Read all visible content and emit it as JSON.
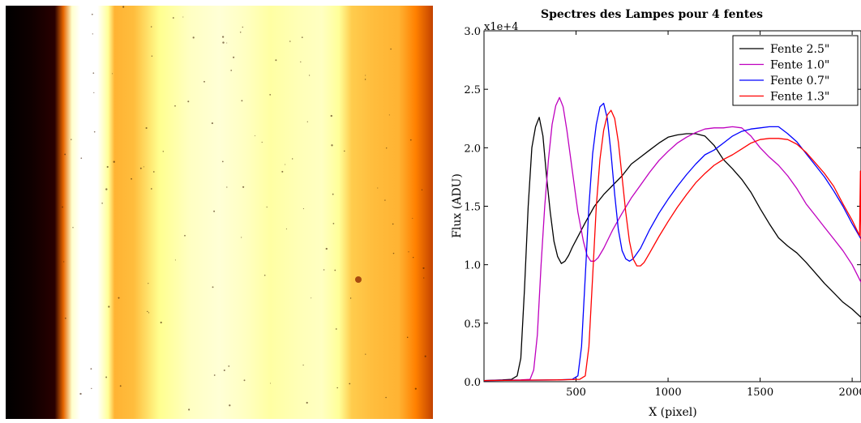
{
  "image": {
    "colormap": "afmhot",
    "bands": [
      {
        "pos": 0.0,
        "level": 0.0
      },
      {
        "pos": 0.06,
        "level": 0.03
      },
      {
        "pos": 0.115,
        "level": 0.08
      },
      {
        "pos": 0.135,
        "level": 0.45
      },
      {
        "pos": 0.155,
        "level": 0.9
      },
      {
        "pos": 0.175,
        "level": 1.0
      },
      {
        "pos": 0.215,
        "level": 1.0
      },
      {
        "pos": 0.24,
        "level": 0.8
      },
      {
        "pos": 0.255,
        "level": 0.6
      },
      {
        "pos": 0.3,
        "level": 0.62
      },
      {
        "pos": 0.36,
        "level": 0.78
      },
      {
        "pos": 0.43,
        "level": 0.88
      },
      {
        "pos": 0.5,
        "level": 0.92
      },
      {
        "pos": 0.56,
        "level": 0.88
      },
      {
        "pos": 0.62,
        "level": 0.82
      },
      {
        "pos": 0.69,
        "level": 0.86
      },
      {
        "pos": 0.74,
        "level": 0.88
      },
      {
        "pos": 0.78,
        "level": 0.8
      },
      {
        "pos": 0.81,
        "level": 0.65
      },
      {
        "pos": 0.86,
        "level": 0.62
      },
      {
        "pos": 0.92,
        "level": 0.6
      },
      {
        "pos": 0.96,
        "level": 0.5
      },
      {
        "pos": 1.0,
        "level": 0.38
      }
    ]
  },
  "chart_data": {
    "type": "line",
    "title": "Spectres des Lampes pour 4 fentes",
    "xlabel": "X (pixel)",
    "ylabel": "Flux (ADU)",
    "y_multiplier": "x1e+4",
    "xlim": [
      0,
      2048
    ],
    "ylim": [
      0.0,
      3.0
    ],
    "xticks": [
      500,
      1000,
      1500,
      2000
    ],
    "yticks": [
      0.0,
      0.5,
      1.0,
      1.5,
      2.0,
      2.5,
      3.0
    ],
    "legend_position": "top-right",
    "series": [
      {
        "name": "Fente 2.5\"",
        "color": "#000000",
        "points": [
          [
            0,
            0.01
          ],
          [
            100,
            0.015
          ],
          [
            150,
            0.02
          ],
          [
            180,
            0.05
          ],
          [
            200,
            0.2
          ],
          [
            220,
            0.8
          ],
          [
            240,
            1.5
          ],
          [
            260,
            2.0
          ],
          [
            280,
            2.18
          ],
          [
            300,
            2.26
          ],
          [
            320,
            2.1
          ],
          [
            340,
            1.75
          ],
          [
            360,
            1.45
          ],
          [
            380,
            1.2
          ],
          [
            400,
            1.07
          ],
          [
            420,
            1.01
          ],
          [
            440,
            1.03
          ],
          [
            460,
            1.08
          ],
          [
            480,
            1.15
          ],
          [
            500,
            1.21
          ],
          [
            550,
            1.36
          ],
          [
            600,
            1.5
          ],
          [
            650,
            1.6
          ],
          [
            700,
            1.68
          ],
          [
            750,
            1.76
          ],
          [
            800,
            1.86
          ],
          [
            850,
            1.92
          ],
          [
            900,
            1.98
          ],
          [
            950,
            2.04
          ],
          [
            1000,
            2.09
          ],
          [
            1050,
            2.11
          ],
          [
            1100,
            2.12
          ],
          [
            1150,
            2.12
          ],
          [
            1200,
            2.1
          ],
          [
            1250,
            2.02
          ],
          [
            1300,
            1.9
          ],
          [
            1350,
            1.82
          ],
          [
            1400,
            1.73
          ],
          [
            1450,
            1.62
          ],
          [
            1500,
            1.48
          ],
          [
            1550,
            1.35
          ],
          [
            1600,
            1.23
          ],
          [
            1650,
            1.16
          ],
          [
            1700,
            1.1
          ],
          [
            1750,
            1.02
          ],
          [
            1800,
            0.93
          ],
          [
            1850,
            0.84
          ],
          [
            1900,
            0.76
          ],
          [
            1950,
            0.68
          ],
          [
            2000,
            0.62
          ],
          [
            2048,
            0.55
          ]
        ]
      },
      {
        "name": "Fente 1.0\"",
        "color": "#bf00bf",
        "points": [
          [
            0,
            0.01
          ],
          [
            200,
            0.015
          ],
          [
            250,
            0.02
          ],
          [
            270,
            0.1
          ],
          [
            290,
            0.4
          ],
          [
            310,
            1.0
          ],
          [
            330,
            1.5
          ],
          [
            350,
            1.9
          ],
          [
            370,
            2.2
          ],
          [
            390,
            2.36
          ],
          [
            410,
            2.43
          ],
          [
            430,
            2.35
          ],
          [
            450,
            2.15
          ],
          [
            480,
            1.8
          ],
          [
            510,
            1.45
          ],
          [
            540,
            1.2
          ],
          [
            560,
            1.08
          ],
          [
            580,
            1.03
          ],
          [
            600,
            1.03
          ],
          [
            620,
            1.06
          ],
          [
            650,
            1.14
          ],
          [
            700,
            1.3
          ],
          [
            750,
            1.44
          ],
          [
            800,
            1.57
          ],
          [
            850,
            1.68
          ],
          [
            900,
            1.79
          ],
          [
            950,
            1.89
          ],
          [
            1000,
            1.97
          ],
          [
            1050,
            2.04
          ],
          [
            1100,
            2.09
          ],
          [
            1150,
            2.13
          ],
          [
            1200,
            2.16
          ],
          [
            1250,
            2.17
          ],
          [
            1300,
            2.17
          ],
          [
            1350,
            2.18
          ],
          [
            1400,
            2.17
          ],
          [
            1450,
            2.1
          ],
          [
            1500,
            2.0
          ],
          [
            1550,
            1.92
          ],
          [
            1600,
            1.85
          ],
          [
            1650,
            1.76
          ],
          [
            1700,
            1.65
          ],
          [
            1750,
            1.52
          ],
          [
            1800,
            1.42
          ],
          [
            1850,
            1.32
          ],
          [
            1900,
            1.22
          ],
          [
            1950,
            1.12
          ],
          [
            2000,
            1.0
          ],
          [
            2048,
            0.85
          ]
        ]
      },
      {
        "name": "Fente 0.7\"",
        "color": "#0000ff",
        "points": [
          [
            0,
            0.01
          ],
          [
            400,
            0.015
          ],
          [
            480,
            0.02
          ],
          [
            510,
            0.05
          ],
          [
            530,
            0.3
          ],
          [
            550,
            0.9
          ],
          [
            570,
            1.5
          ],
          [
            590,
            1.95
          ],
          [
            610,
            2.2
          ],
          [
            630,
            2.35
          ],
          [
            650,
            2.38
          ],
          [
            670,
            2.25
          ],
          [
            690,
            1.95
          ],
          [
            710,
            1.6
          ],
          [
            730,
            1.3
          ],
          [
            750,
            1.12
          ],
          [
            770,
            1.05
          ],
          [
            790,
            1.03
          ],
          [
            810,
            1.05
          ],
          [
            850,
            1.14
          ],
          [
            900,
            1.3
          ],
          [
            950,
            1.44
          ],
          [
            1000,
            1.56
          ],
          [
            1050,
            1.67
          ],
          [
            1100,
            1.77
          ],
          [
            1150,
            1.86
          ],
          [
            1200,
            1.94
          ],
          [
            1250,
            1.98
          ],
          [
            1300,
            2.04
          ],
          [
            1350,
            2.1
          ],
          [
            1400,
            2.14
          ],
          [
            1450,
            2.16
          ],
          [
            1500,
            2.17
          ],
          [
            1550,
            2.18
          ],
          [
            1600,
            2.18
          ],
          [
            1650,
            2.12
          ],
          [
            1700,
            2.05
          ],
          [
            1750,
            1.95
          ],
          [
            1800,
            1.85
          ],
          [
            1850,
            1.75
          ],
          [
            1900,
            1.63
          ],
          [
            1950,
            1.5
          ],
          [
            2000,
            1.35
          ],
          [
            2048,
            1.22
          ]
        ]
      },
      {
        "name": "Fente 1.3\"",
        "color": "#ff0000",
        "points": [
          [
            0,
            0.01
          ],
          [
            400,
            0.015
          ],
          [
            520,
            0.02
          ],
          [
            550,
            0.05
          ],
          [
            570,
            0.3
          ],
          [
            590,
            0.9
          ],
          [
            610,
            1.5
          ],
          [
            630,
            1.9
          ],
          [
            650,
            2.15
          ],
          [
            670,
            2.28
          ],
          [
            690,
            2.32
          ],
          [
            710,
            2.25
          ],
          [
            730,
            2.05
          ],
          [
            750,
            1.75
          ],
          [
            770,
            1.45
          ],
          [
            790,
            1.2
          ],
          [
            810,
            1.05
          ],
          [
            830,
            0.99
          ],
          [
            850,
            0.99
          ],
          [
            870,
            1.02
          ],
          [
            900,
            1.1
          ],
          [
            950,
            1.24
          ],
          [
            1000,
            1.37
          ],
          [
            1050,
            1.49
          ],
          [
            1100,
            1.6
          ],
          [
            1150,
            1.7
          ],
          [
            1200,
            1.78
          ],
          [
            1250,
            1.85
          ],
          [
            1300,
            1.9
          ],
          [
            1350,
            1.94
          ],
          [
            1400,
            1.99
          ],
          [
            1450,
            2.04
          ],
          [
            1500,
            2.07
          ],
          [
            1550,
            2.08
          ],
          [
            1600,
            2.08
          ],
          [
            1650,
            2.07
          ],
          [
            1700,
            2.03
          ],
          [
            1750,
            1.96
          ],
          [
            1800,
            1.87
          ],
          [
            1850,
            1.78
          ],
          [
            1900,
            1.67
          ],
          [
            1950,
            1.52
          ],
          [
            2000,
            1.38
          ],
          [
            2040,
            1.25
          ],
          [
            2045,
            1.8
          ],
          [
            2048,
            1.2
          ]
        ]
      }
    ]
  }
}
